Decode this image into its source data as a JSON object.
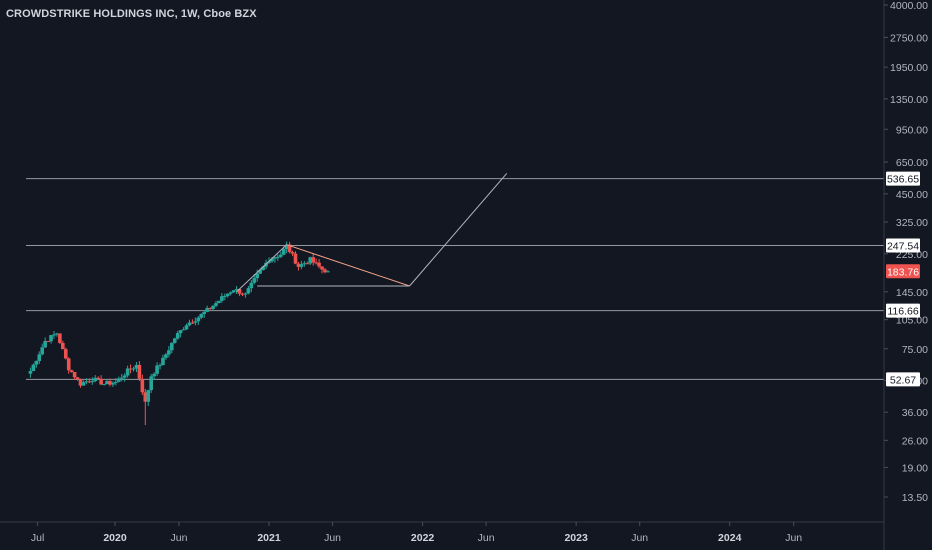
{
  "chart_data": {
    "type": "candlestick",
    "title": "CROWDSTRIKE HOLDINGS INC, 1W, Cboe BZX",
    "y_scale": "log",
    "ylim": [
      10.5,
      4200
    ],
    "y_ticks": [
      {
        "value": 4000,
        "label": "4000.00"
      },
      {
        "value": 2750,
        "label": "2750.00"
      },
      {
        "value": 1950,
        "label": "1950.00"
      },
      {
        "value": 1350,
        "label": "1350.00"
      },
      {
        "value": 950,
        "label": "950.00"
      },
      {
        "value": 650,
        "label": "650.00"
      },
      {
        "value": 450,
        "label": "450.00"
      },
      {
        "value": 325,
        "label": "325.00"
      },
      {
        "value": 225,
        "label": "225.00"
      },
      {
        "value": 145,
        "label": "145.00"
      },
      {
        "value": 105,
        "label": "105.00"
      },
      {
        "value": 75,
        "label": "75.00"
      },
      {
        "value": 52,
        "label": "52.00"
      },
      {
        "value": 36,
        "label": "36.00"
      },
      {
        "value": 26,
        "label": "26.00"
      },
      {
        "value": 19,
        "label": "19.00"
      },
      {
        "value": 13.5,
        "label": "13.50"
      }
    ],
    "x_ticks": [
      {
        "label": "Jul",
        "date": "2019-07-01",
        "bold": false
      },
      {
        "label": "2020",
        "date": "2020-01-01",
        "bold": true
      },
      {
        "label": "Jun",
        "date": "2020-06-01",
        "bold": false
      },
      {
        "label": "2021",
        "date": "2021-01-01",
        "bold": true
      },
      {
        "label": "Jun",
        "date": "2021-06-01",
        "bold": false
      },
      {
        "label": "2022",
        "date": "2022-01-01",
        "bold": true
      },
      {
        "label": "Jun",
        "date": "2022-06-01",
        "bold": false
      },
      {
        "label": "2023",
        "date": "2023-01-01",
        "bold": true
      },
      {
        "label": "Jun",
        "date": "2023-06-01",
        "bold": false
      },
      {
        "label": "2024",
        "date": "2024-01-01",
        "bold": true
      },
      {
        "label": "Jun",
        "date": "2024-06-01",
        "bold": false
      }
    ],
    "horizontal_levels": [
      {
        "value": 536.65,
        "label": "536.65"
      },
      {
        "value": 247.54,
        "label": "247.54"
      },
      {
        "value": 116.66,
        "label": "116.66"
      },
      {
        "value": 52.67,
        "label": "52.67"
      }
    ],
    "last_price": {
      "value": 183.76,
      "label": "183.76",
      "color": "#ef5350"
    },
    "candles_weekly_close": [
      {
        "date": "2019-06-14",
        "close": 58
      },
      {
        "date": "2019-07-19",
        "close": 82
      },
      {
        "date": "2019-08-16",
        "close": 90
      },
      {
        "date": "2019-09-13",
        "close": 60
      },
      {
        "date": "2019-10-11",
        "close": 50
      },
      {
        "date": "2019-11-08",
        "close": 53
      },
      {
        "date": "2019-12-06",
        "close": 50
      },
      {
        "date": "2020-01-03",
        "close": 51
      },
      {
        "date": "2020-01-31",
        "close": 58
      },
      {
        "date": "2020-02-21",
        "close": 62
      },
      {
        "date": "2020-03-13",
        "close": 40
      },
      {
        "date": "2020-03-27",
        "close": 55
      },
      {
        "date": "2020-04-24",
        "close": 66
      },
      {
        "date": "2020-05-22",
        "close": 85
      },
      {
        "date": "2020-06-19",
        "close": 100
      },
      {
        "date": "2020-07-17",
        "close": 108
      },
      {
        "date": "2020-08-14",
        "close": 120
      },
      {
        "date": "2020-09-11",
        "close": 135
      },
      {
        "date": "2020-10-09",
        "close": 150
      },
      {
        "date": "2020-11-06",
        "close": 140
      },
      {
        "date": "2020-12-04",
        "close": 175
      },
      {
        "date": "2021-01-01",
        "close": 212
      },
      {
        "date": "2021-01-29",
        "close": 224
      },
      {
        "date": "2021-02-12",
        "close": 247
      },
      {
        "date": "2021-03-12",
        "close": 195
      },
      {
        "date": "2021-04-09",
        "close": 210
      },
      {
        "date": "2021-05-07",
        "close": 188
      },
      {
        "date": "2021-05-21",
        "close": 183.76
      }
    ],
    "trendlines": [
      {
        "name": "rise",
        "from": {
          "date": "2020-10-16",
          "value": 145
        },
        "to": {
          "date": "2021-02-12",
          "value": 250
        },
        "color": "#b2b5be"
      },
      {
        "name": "triangle-top",
        "from": {
          "date": "2021-02-12",
          "value": 250
        },
        "to": {
          "date": "2021-12-01",
          "value": 155
        },
        "color": "#f7a58a"
      },
      {
        "name": "triangle-base",
        "from": {
          "date": "2020-12-04",
          "value": 155
        },
        "to": {
          "date": "2021-12-01",
          "value": 155
        },
        "color": "#b2b5be"
      },
      {
        "name": "projection",
        "from": {
          "date": "2021-12-01",
          "value": 155
        },
        "to": {
          "date": "2022-07-20",
          "value": 570
        },
        "color": "#b2b5be"
      }
    ],
    "grid": false,
    "legend": "none"
  }
}
